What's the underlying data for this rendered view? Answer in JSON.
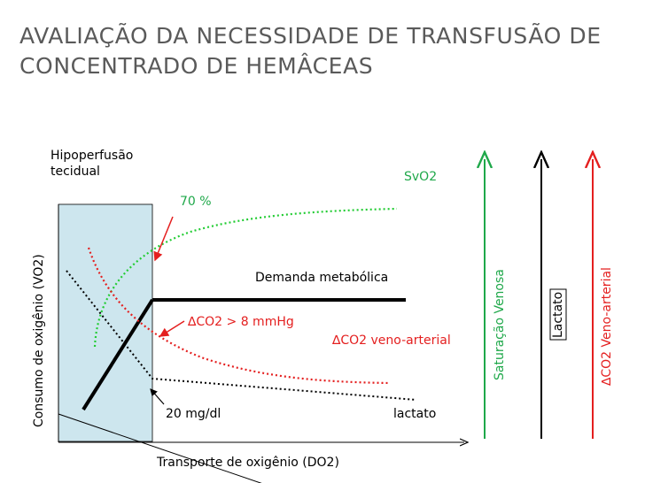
{
  "title": "AVALIAÇÃO DA NECESSIDADE DE TRANSFUSÃO DE\nCONCENTRADO DE HEMÂCEAS",
  "labels": {
    "hipoperfusao": "Hipoperfusão\ntecidual",
    "svo2": "SvO2",
    "pct70": "70 %",
    "demanda": "Demanda metabólica",
    "dco2_8": "∆CO2 > 8 mmHg",
    "dco2_veno": "∆CO2 veno-arterial",
    "mg20": "20 mg/dl",
    "lactato_small": "lactato",
    "x_axis": "Transporte de oxigênio (DO2)",
    "y_axis": "Consumo de oxigênio (VO2)",
    "saturacao": "Saturação Venosa",
    "lactato_side": "Lactato",
    "dco2_side": "∆CO2 Veno-arterial"
  },
  "colors": {
    "green": "#1fa84a",
    "red": "#e41f1f",
    "shade": "#cde6ee",
    "title": "#5a5a5a"
  }
}
